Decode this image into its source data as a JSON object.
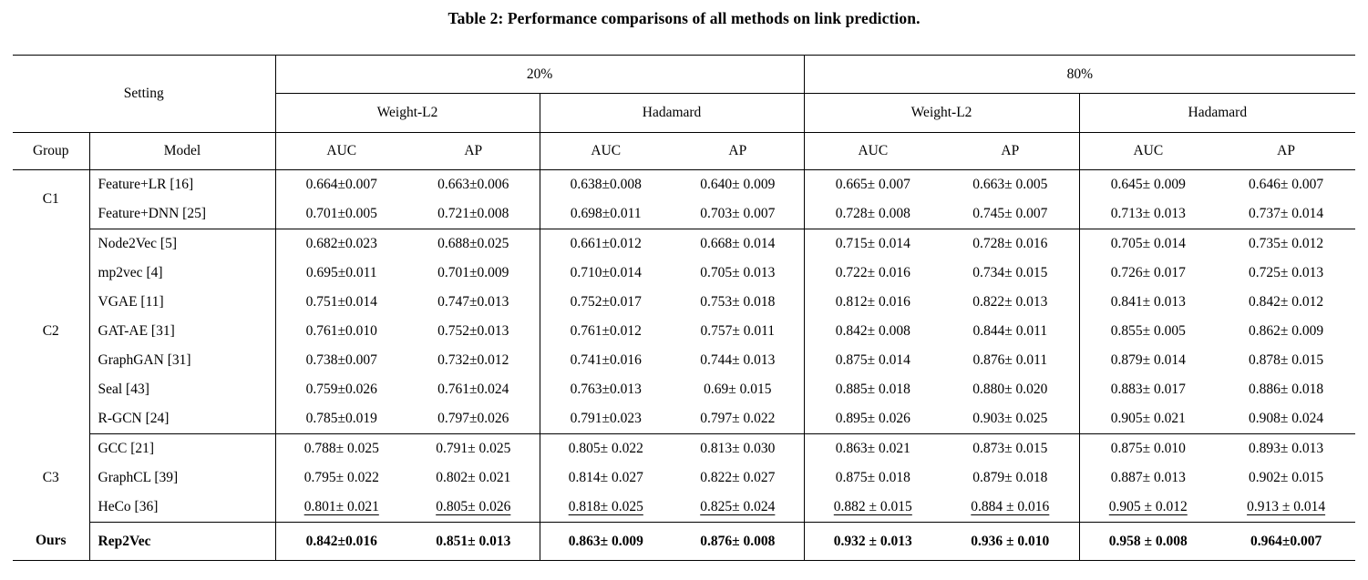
{
  "caption": "Table 2: Performance comparisons of all methods on link prediction.",
  "table": {
    "header": {
      "setting_label": "Setting",
      "top_groups": [
        "20%",
        "80%"
      ],
      "sub_groups": [
        "Weight-L2",
        "Hadamard",
        "Weight-L2",
        "Hadamard"
      ],
      "col_headers": [
        "Group",
        "Model",
        "AUC",
        "AP",
        "AUC",
        "AP",
        "AUC",
        "AP",
        "AUC",
        "AP"
      ]
    },
    "groups": [
      {
        "name": "C1",
        "rows": [
          {
            "model": "Feature+LR [16]",
            "values": [
              "0.664±0.007",
              "0.663±0.006",
              "0.638±0.008",
              "0.640± 0.009",
              "0.665± 0.007",
              "0.663± 0.005",
              "0.645± 0.009",
              "0.646± 0.007"
            ]
          },
          {
            "model": "Feature+DNN [25]",
            "values": [
              "0.701±0.005",
              "0.721±0.008",
              "0.698±0.011",
              "0.703± 0.007",
              "0.728± 0.008",
              "0.745± 0.007",
              "0.713± 0.013",
              "0.737± 0.014"
            ]
          }
        ]
      },
      {
        "name": "C2",
        "rows": [
          {
            "model": "Node2Vec [5]",
            "values": [
              "0.682±0.023",
              "0.688±0.025",
              "0.661±0.012",
              "0.668± 0.014",
              "0.715± 0.014",
              "0.728± 0.016",
              "0.705± 0.014",
              "0.735± 0.012"
            ]
          },
          {
            "model": "mp2vec [4]",
            "values": [
              "0.695±0.011",
              "0.701±0.009",
              "0.710±0.014",
              "0.705± 0.013",
              "0.722± 0.016",
              "0.734± 0.015",
              "0.726± 0.017",
              "0.725± 0.013"
            ]
          },
          {
            "model": "VGAE [11]",
            "values": [
              "0.751±0.014",
              "0.747±0.013",
              "0.752±0.017",
              "0.753± 0.018",
              "0.812± 0.016",
              "0.822± 0.013",
              "0.841± 0.013",
              "0.842± 0.012"
            ]
          },
          {
            "model": "GAT-AE [31]",
            "values": [
              "0.761±0.010",
              "0.752±0.013",
              "0.761±0.012",
              "0.757± 0.011",
              "0.842± 0.008",
              "0.844± 0.011",
              "0.855± 0.005",
              "0.862± 0.009"
            ]
          },
          {
            "model": "GraphGAN [31]",
            "values": [
              "0.738±0.007",
              "0.732±0.012",
              "0.741±0.016",
              "0.744± 0.013",
              "0.875± 0.014",
              "0.876± 0.011",
              "0.879± 0.014",
              "0.878± 0.015"
            ]
          },
          {
            "model": "Seal [43]",
            "values": [
              "0.759±0.026",
              "0.761±0.024",
              "0.763±0.013",
              "0.69± 0.015",
              "0.885± 0.018",
              "0.880± 0.020",
              "0.883± 0.017",
              "0.886± 0.018"
            ]
          },
          {
            "model": "R-GCN [24]",
            "values": [
              "0.785±0.019",
              "0.797±0.026",
              "0.791±0.023",
              "0.797± 0.022",
              "0.895± 0.026",
              "0.903± 0.025",
              "0.905± 0.021",
              "0.908± 0.024"
            ]
          }
        ]
      },
      {
        "name": "C3",
        "rows": [
          {
            "model": "GCC [21]",
            "values": [
              "0.788± 0.025",
              "0.791± 0.025",
              "0.805± 0.022",
              "0.813± 0.030",
              "0.863± 0.021",
              "0.873± 0.015",
              "0.875± 0.010",
              "0.893± 0.013"
            ]
          },
          {
            "model": "GraphCL [39]",
            "values": [
              "0.795± 0.022",
              "0.802± 0.021",
              "0.814± 0.027",
              "0.822± 0.027",
              "0.875± 0.018",
              "0.879± 0.018",
              "0.887± 0.013",
              "0.902± 0.015"
            ]
          },
          {
            "model": "HeCo [36]",
            "underline": true,
            "values": [
              "0.801± 0.021",
              "0.805± 0.026",
              "0.818± 0.025",
              "0.825± 0.024",
              "0.882 ± 0.015",
              "0.884 ± 0.016",
              "0.905 ± 0.012",
              "0.913 ± 0.014"
            ]
          }
        ]
      },
      {
        "name": "Ours",
        "rows": [
          {
            "model": "Rep2Vec",
            "bold": true,
            "values": [
              "0.842±0.016",
              "0.851± 0.013",
              "0.863± 0.009",
              "0.876± 0.008",
              "0.932 ± 0.013",
              "0.936 ± 0.010",
              "0.958 ± 0.008",
              "0.964±0.007"
            ]
          }
        ]
      }
    ]
  }
}
